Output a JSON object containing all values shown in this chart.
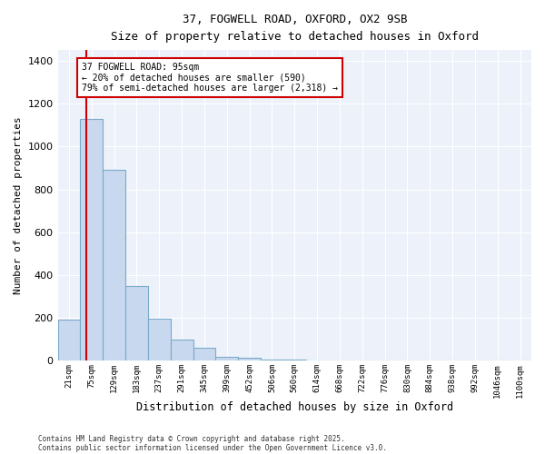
{
  "title_line1": "37, FOGWELL ROAD, OXFORD, OX2 9SB",
  "title_line2": "Size of property relative to detached houses in Oxford",
  "xlabel": "Distribution of detached houses by size in Oxford",
  "ylabel": "Number of detached properties",
  "categories": [
    "21sqm",
    "75sqm",
    "129sqm",
    "183sqm",
    "237sqm",
    "291sqm",
    "345sqm",
    "399sqm",
    "452sqm",
    "506sqm",
    "560sqm",
    "614sqm",
    "668sqm",
    "722sqm",
    "776sqm",
    "830sqm",
    "884sqm",
    "938sqm",
    "992sqm",
    "1046sqm",
    "1100sqm"
  ],
  "values": [
    192,
    1130,
    890,
    350,
    195,
    100,
    60,
    20,
    15,
    8,
    5,
    3,
    3,
    2,
    2,
    2,
    1,
    1,
    1,
    1,
    3
  ],
  "bar_color": "#c8d8ee",
  "bar_edgecolor": "#7aaaca",
  "bar_linewidth": 0.8,
  "annotation_line1": "37 FOGWELL ROAD: 95sqm",
  "annotation_line2": "← 20% of detached houses are smaller (590)",
  "annotation_line3": "79% of semi-detached houses are larger (2,318) →",
  "annotation_box_facecolor": "#ffffff",
  "annotation_box_edgecolor": "#cc0000",
  "redline_color": "#cc0000",
  "background_color": "#edf2fa",
  "grid_color": "#ffffff",
  "ylim": [
    0,
    1450
  ],
  "yticks": [
    0,
    200,
    400,
    600,
    800,
    1000,
    1200,
    1400
  ],
  "footer_line1": "Contains HM Land Registry data © Crown copyright and database right 2025.",
  "footer_line2": "Contains public sector information licensed under the Open Government Licence v3.0."
}
